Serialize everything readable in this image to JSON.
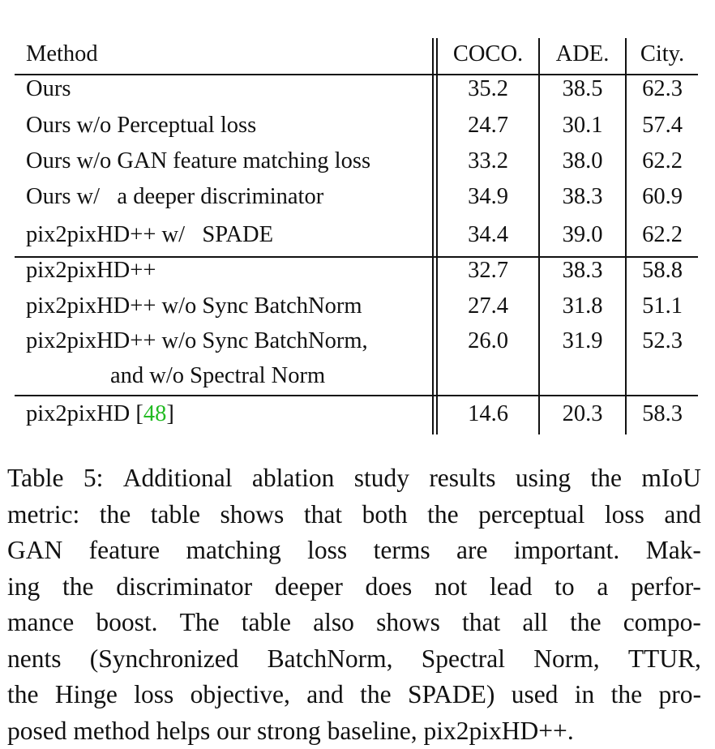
{
  "table": {
    "headers": [
      "Method",
      "COCO.",
      "ADE.",
      "City."
    ],
    "groups": [
      {
        "rows": [
          {
            "method": "Ours",
            "coco": "35.2",
            "ade": "38.5",
            "city": "62.3"
          },
          {
            "method": "Ours w/o Perceptual loss",
            "coco": "24.7",
            "ade": "30.1",
            "city": "57.4"
          },
          {
            "method": "Ours w/o GAN feature matching loss",
            "coco": "33.2",
            "ade": "38.0",
            "city": "62.2"
          },
          {
            "method": "Ours w/   a deeper discriminator",
            "coco": "34.9",
            "ade": "38.3",
            "city": "60.9"
          }
        ]
      },
      {
        "rows": [
          {
            "method": "pix2pixHD++ w/   SPADE",
            "coco": "34.4",
            "ade": "39.0",
            "city": "62.2"
          },
          {
            "method": "pix2pixHD++",
            "coco": "32.7",
            "ade": "38.3",
            "city": "58.8"
          },
          {
            "method": "pix2pixHD++ w/o Sync BatchNorm",
            "coco": "27.4",
            "ade": "31.8",
            "city": "51.1"
          },
          {
            "method": "pix2pixHD++ w/o Sync BatchNorm,",
            "method_cont": "and w/o Spectral Norm",
            "coco": "26.0",
            "ade": "31.9",
            "city": "52.3"
          }
        ]
      },
      {
        "rows": [
          {
            "method": "pix2pixHD ",
            "ref_open": "[",
            "ref": "48",
            "ref_close": "]",
            "coco": "14.6",
            "ade": "20.3",
            "city": "58.3"
          }
        ]
      }
    ]
  },
  "caption": {
    "lines": [
      "Table 5: Additional ablation study results using the mIoU",
      "metric: the table shows that both the perceptual loss and",
      "GAN feature matching loss terms are important.  Mak-",
      "ing the discriminator deeper does not lead to a perfor-",
      "mance boost.  The table also shows that all the compo-",
      "nents (Synchronized BatchNorm, Spectral Norm, TTUR,",
      "the Hinge loss objective, and the SPADE) used in the pro-",
      "posed method helps our strong baseline, pix2pixHD++."
    ]
  }
}
